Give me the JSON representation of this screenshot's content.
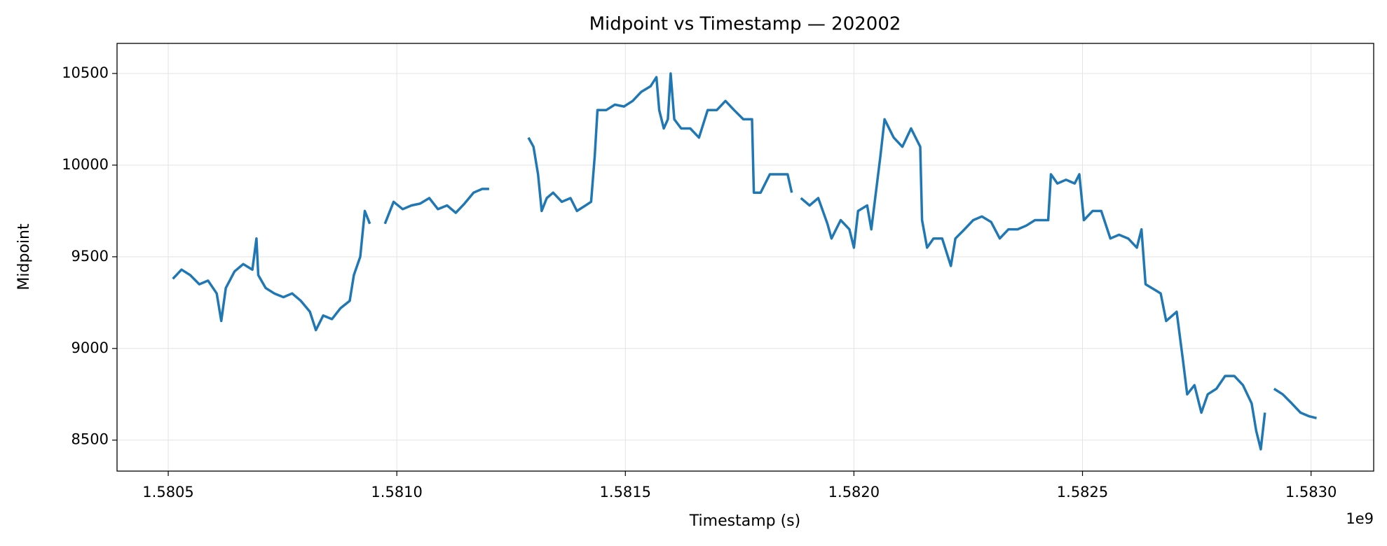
{
  "chart_data": {
    "type": "line",
    "title": "Midpoint vs Timestamp — 202002",
    "x_label": "Timestamp (s)",
    "y_label": "Midpoint",
    "x_offset_label": "1e9",
    "color": "#1f77b4",
    "grid": true,
    "xlim": [
      1580388000,
      1583137000
    ],
    "ylim": [
      8331,
      10664
    ],
    "xticks": [
      {
        "value": 1580500000,
        "label": "1.5805"
      },
      {
        "value": 1581000000,
        "label": "1.5810"
      },
      {
        "value": 1581500000,
        "label": "1.5815"
      },
      {
        "value": 1582000000,
        "label": "1.5820"
      },
      {
        "value": 1582500000,
        "label": "1.5825"
      },
      {
        "value": 1583000000,
        "label": "1.5830"
      }
    ],
    "yticks": [
      8500,
      9000,
      9500,
      10000,
      10500
    ],
    "x": [
      1580510000,
      1580529000,
      1580548000,
      1580568000,
      1580587000,
      1580606000,
      1580616000,
      1580626000,
      1580645000,
      1580664000,
      1580684000,
      1580693000,
      1580697000,
      1580713000,
      1580732000,
      1580752000,
      1580771000,
      1580790000,
      1580810000,
      1580823000,
      1580839000,
      1580858000,
      1580877000,
      1580897000,
      1580906000,
      1580920000,
      1580930000,
      1580941000,
      1580957000,
      1580974000,
      1580993000,
      1581013000,
      1581032000,
      1581051000,
      1581071000,
      1581090000,
      1581110000,
      1581129000,
      1581148000,
      1581168000,
      1581187000,
      1581202000,
      1581245000,
      1581288000,
      1581299000,
      1581309000,
      1581317000,
      1581328000,
      1581342000,
      1581361000,
      1581380000,
      1581394000,
      1581413000,
      1581425000,
      1581433000,
      1581439000,
      1581458000,
      1581477000,
      1581497000,
      1581516000,
      1581535000,
      1581555000,
      1581568000,
      1581574000,
      1581584000,
      1581593000,
      1581599000,
      1581607000,
      1581622000,
      1581642000,
      1581661000,
      1581680000,
      1581700000,
      1581719000,
      1581738000,
      1581758000,
      1581777000,
      1581781000,
      1581796000,
      1581816000,
      1581835000,
      1581855000,
      1581864000,
      1581874000,
      1581884000,
      1581903000,
      1581922000,
      1581942000,
      1581951000,
      1581971000,
      1581990000,
      1582000000,
      1582009000,
      1582029000,
      1582038000,
      1582048000,
      1582058000,
      1582067000,
      1582087000,
      1582106000,
      1582125000,
      1582145000,
      1582149000,
      1582160000,
      1582174000,
      1582193000,
      1582212000,
      1582222000,
      1582242000,
      1582261000,
      1582280000,
      1582300000,
      1582319000,
      1582338000,
      1582358000,
      1582377000,
      1582396000,
      1582416000,
      1582425000,
      1582431000,
      1582445000,
      1582464000,
      1582483000,
      1582493000,
      1582503000,
      1582522000,
      1582541000,
      1582561000,
      1582580000,
      1582600000,
      1582619000,
      1582629000,
      1582638000,
      1582658000,
      1582671000,
      1582683000,
      1582706000,
      1582719000,
      1582729000,
      1582745000,
      1582760000,
      1582774000,
      1582793000,
      1582812000,
      1582832000,
      1582851000,
      1582870000,
      1582880000,
      1582890000,
      1582899000,
      1582909000,
      1582919000,
      1582938000,
      1582958000,
      1582977000,
      1582996000,
      1583012000
    ],
    "values": [
      9380,
      9430,
      9400,
      9350,
      9370,
      9300,
      9150,
      9330,
      9420,
      9460,
      9430,
      9600,
      9400,
      9330,
      9300,
      9280,
      9300,
      9260,
      9200,
      9100,
      9180,
      9160,
      9220,
      9260,
      9400,
      9500,
      9750,
      9680,
      null,
      9680,
      9800,
      9760,
      9780,
      9790,
      9820,
      9760,
      9780,
      9740,
      9790,
      9850,
      9870,
      9870,
      null,
      10150,
      10100,
      9950,
      9750,
      9820,
      9850,
      9800,
      9820,
      9750,
      9780,
      9800,
      10050,
      10300,
      10300,
      10330,
      10320,
      10350,
      10400,
      10430,
      10480,
      10300,
      10200,
      10250,
      10500,
      10250,
      10200,
      10200,
      10150,
      10300,
      10300,
      10350,
      10300,
      10250,
      10250,
      9850,
      9850,
      9950,
      9950,
      9950,
      9850,
      null,
      9820,
      9780,
      9820,
      9680,
      9600,
      9700,
      9650,
      9550,
      9750,
      9780,
      9650,
      9850,
      10050,
      10250,
      10150,
      10100,
      10200,
      10100,
      9700,
      9550,
      9600,
      9600,
      9450,
      9600,
      9650,
      9700,
      9720,
      9690,
      9600,
      9650,
      9650,
      9670,
      9700,
      9700,
      9700,
      9950,
      9900,
      9920,
      9900,
      9950,
      9700,
      9750,
      9750,
      9600,
      9620,
      9600,
      9550,
      9650,
      9350,
      9320,
      9300,
      9150,
      9200,
      8950,
      8750,
      8800,
      8650,
      8750,
      8780,
      8850,
      8850,
      8800,
      8700,
      8550,
      8450,
      8650,
      null,
      8780,
      8750,
      8700,
      8650,
      8630,
      8620
    ]
  }
}
